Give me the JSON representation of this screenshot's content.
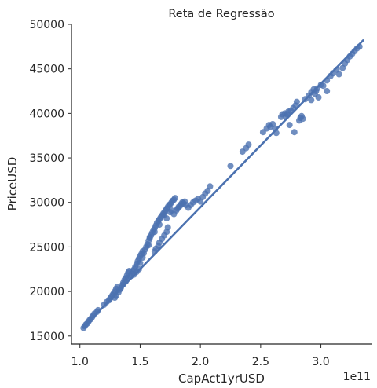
{
  "chart_data": {
    "type": "scatter",
    "title": "Reta de Regressão",
    "xlabel": "CapAct1yrUSD",
    "ylabel": "PriceUSD",
    "x_offset_label": "1e11",
    "xlim": [
      0.93,
      3.42
    ],
    "ylim": [
      14100,
      50000
    ],
    "xticks": [
      1.0,
      1.5,
      2.0,
      2.5,
      3.0
    ],
    "xtick_labels": [
      "1.0",
      "1.5",
      "2.0",
      "2.5",
      "3.0"
    ],
    "yticks": [
      15000,
      20000,
      25000,
      30000,
      35000,
      40000,
      45000,
      50000
    ],
    "ytick_labels": [
      "15000",
      "20000",
      "25000",
      "30000",
      "35000",
      "40000",
      "45000",
      "50000"
    ],
    "grid": false,
    "colors": {
      "points": "#4c72b0",
      "line": "#4c72b0",
      "axes": "#262626"
    },
    "regression_line": {
      "x": [
        1.03,
        3.35
      ],
      "y": [
        16000,
        48200
      ]
    },
    "series": [
      {
        "points": [
          [
            1.03,
            15900
          ],
          [
            1.04,
            16100
          ],
          [
            1.05,
            16300
          ],
          [
            1.06,
            16400
          ],
          [
            1.07,
            16600
          ],
          [
            1.08,
            16800
          ],
          [
            1.09,
            16900
          ],
          [
            1.1,
            17100
          ],
          [
            1.11,
            17300
          ],
          [
            1.12,
            17500
          ],
          [
            1.14,
            17700
          ],
          [
            1.15,
            17900
          ],
          [
            1.2,
            18500
          ],
          [
            1.22,
            18800
          ],
          [
            1.24,
            19000
          ],
          [
            1.25,
            19200
          ],
          [
            1.26,
            19400
          ],
          [
            1.27,
            19600
          ],
          [
            1.28,
            19800
          ],
          [
            1.29,
            20000
          ],
          [
            1.3,
            20300
          ],
          [
            1.31,
            20500
          ],
          [
            1.29,
            19300
          ],
          [
            1.3,
            19500
          ],
          [
            1.32,
            19900
          ],
          [
            1.33,
            20200
          ],
          [
            1.34,
            20400
          ],
          [
            1.35,
            20700
          ],
          [
            1.36,
            21000
          ],
          [
            1.37,
            21300
          ],
          [
            1.38,
            21500
          ],
          [
            1.39,
            21800
          ],
          [
            1.4,
            22100
          ],
          [
            1.41,
            22300
          ],
          [
            1.36,
            20800
          ],
          [
            1.38,
            21100
          ],
          [
            1.4,
            21500
          ],
          [
            1.42,
            21700
          ],
          [
            1.43,
            22000
          ],
          [
            1.44,
            22300
          ],
          [
            1.45,
            22500
          ],
          [
            1.46,
            22800
          ],
          [
            1.47,
            23100
          ],
          [
            1.48,
            23400
          ],
          [
            1.49,
            23700
          ],
          [
            1.5,
            24000
          ],
          [
            1.51,
            24200
          ],
          [
            1.52,
            24500
          ],
          [
            1.45,
            21900
          ],
          [
            1.47,
            22200
          ],
          [
            1.49,
            22500
          ],
          [
            1.5,
            23200
          ],
          [
            1.52,
            23800
          ],
          [
            1.53,
            24300
          ],
          [
            1.54,
            24700
          ],
          [
            1.55,
            25000
          ],
          [
            1.56,
            25300
          ],
          [
            1.57,
            25700
          ],
          [
            1.58,
            26000
          ],
          [
            1.59,
            26300
          ],
          [
            1.6,
            26600
          ],
          [
            1.61,
            26900
          ],
          [
            1.62,
            27100
          ],
          [
            1.63,
            27400
          ],
          [
            1.64,
            27700
          ],
          [
            1.65,
            27900
          ],
          [
            1.66,
            28100
          ],
          [
            1.67,
            28300
          ],
          [
            1.68,
            28500
          ],
          [
            1.69,
            28700
          ],
          [
            1.7,
            28900
          ],
          [
            1.71,
            29100
          ],
          [
            1.72,
            29300
          ],
          [
            1.73,
            29500
          ],
          [
            1.74,
            29700
          ],
          [
            1.75,
            29800
          ],
          [
            1.76,
            30000
          ],
          [
            1.77,
            30200
          ],
          [
            1.78,
            30300
          ],
          [
            1.79,
            30500
          ],
          [
            1.8,
            29100
          ],
          [
            1.81,
            29300
          ],
          [
            1.82,
            29500
          ],
          [
            1.83,
            29600
          ],
          [
            1.84,
            29800
          ],
          [
            1.85,
            30000
          ],
          [
            1.86,
            29900
          ],
          [
            1.87,
            30100
          ],
          [
            1.88,
            29700
          ],
          [
            1.9,
            29400
          ],
          [
            1.92,
            29700
          ],
          [
            1.94,
            30000
          ],
          [
            1.96,
            30200
          ],
          [
            1.98,
            30400
          ],
          [
            2.0,
            30100
          ],
          [
            2.02,
            30600
          ],
          [
            2.04,
            31000
          ],
          [
            2.06,
            31300
          ],
          [
            2.08,
            31800
          ],
          [
            1.57,
            25200
          ],
          [
            1.58,
            26100
          ],
          [
            1.62,
            26700
          ],
          [
            1.66,
            27500
          ],
          [
            1.7,
            28600
          ],
          [
            1.75,
            28900
          ],
          [
            1.72,
            28200
          ],
          [
            1.76,
            29100
          ],
          [
            1.78,
            28700
          ],
          [
            1.62,
            24500
          ],
          [
            1.63,
            24800
          ],
          [
            1.65,
            25100
          ],
          [
            1.66,
            25500
          ],
          [
            1.68,
            25900
          ],
          [
            1.7,
            26300
          ],
          [
            1.72,
            26700
          ],
          [
            1.73,
            27200
          ],
          [
            2.25,
            34100
          ],
          [
            2.35,
            35700
          ],
          [
            2.38,
            36100
          ],
          [
            2.4,
            36500
          ],
          [
            2.52,
            37900
          ],
          [
            2.55,
            38300
          ],
          [
            2.57,
            38700
          ],
          [
            2.58,
            38500
          ],
          [
            2.6,
            38800
          ],
          [
            2.63,
            37800
          ],
          [
            2.67,
            39600
          ],
          [
            2.68,
            39900
          ],
          [
            2.7,
            40000
          ],
          [
            2.71,
            39700
          ],
          [
            2.72,
            39900
          ],
          [
            2.73,
            40200
          ],
          [
            2.75,
            40300
          ],
          [
            2.77,
            40600
          ],
          [
            2.79,
            40900
          ],
          [
            2.8,
            41300
          ],
          [
            2.82,
            39200
          ],
          [
            2.83,
            39500
          ],
          [
            2.84,
            39700
          ],
          [
            2.85,
            39400
          ],
          [
            2.87,
            41600
          ],
          [
            2.9,
            42000
          ],
          [
            2.92,
            42400
          ],
          [
            2.94,
            42700
          ],
          [
            2.95,
            42200
          ],
          [
            2.96,
            42500
          ],
          [
            2.97,
            42800
          ],
          [
            3.0,
            43200
          ],
          [
            3.02,
            43100
          ],
          [
            3.05,
            43700
          ],
          [
            3.08,
            44200
          ],
          [
            3.1,
            44500
          ],
          [
            3.13,
            44900
          ],
          [
            3.15,
            44400
          ],
          [
            3.18,
            45100
          ],
          [
            3.2,
            45600
          ],
          [
            3.22,
            46000
          ],
          [
            3.24,
            46400
          ],
          [
            3.26,
            46700
          ],
          [
            3.28,
            47000
          ],
          [
            3.3,
            47300
          ],
          [
            3.32,
            47500
          ],
          [
            2.78,
            37900
          ],
          [
            2.62,
            38300
          ],
          [
            2.74,
            38700
          ],
          [
            3.05,
            42500
          ],
          [
            2.98,
            41800
          ],
          [
            2.92,
            41500
          ]
        ]
      }
    ]
  }
}
